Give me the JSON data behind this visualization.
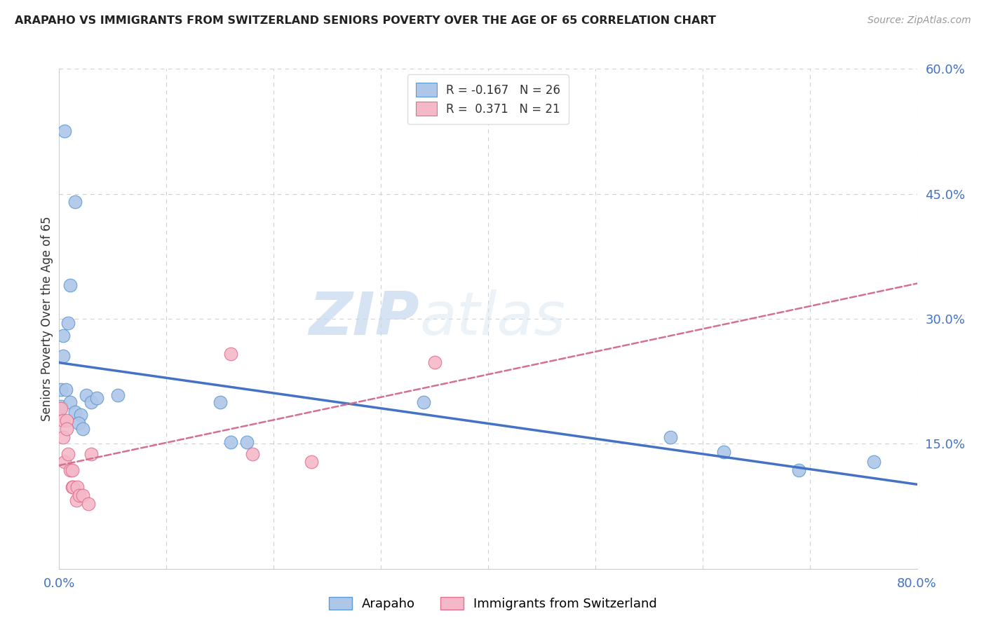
{
  "title": "ARAPAHO VS IMMIGRANTS FROM SWITZERLAND SENIORS POVERTY OVER THE AGE OF 65 CORRELATION CHART",
  "source": "Source: ZipAtlas.com",
  "ylabel": "Seniors Poverty Over the Age of 65",
  "xlim": [
    0,
    0.8
  ],
  "ylim": [
    0,
    0.6
  ],
  "xticks": [
    0.0,
    0.1,
    0.2,
    0.3,
    0.4,
    0.5,
    0.6,
    0.7,
    0.8
  ],
  "yticks": [
    0.0,
    0.15,
    0.3,
    0.45,
    0.6
  ],
  "background_color": "#ffffff",
  "grid_color": "#d0d0d0",
  "watermark_zip": "ZIP",
  "watermark_atlas": "atlas",
  "arapaho_color": "#aec6e8",
  "swiss_color": "#f4b8c8",
  "arapaho_edge_color": "#5b9bd5",
  "swiss_edge_color": "#e07090",
  "arapaho_line_color": "#4472c4",
  "swiss_line_color": "#d47090",
  "legend_label1": "R = -0.167   N = 26",
  "legend_label2": "R =  0.371   N = 21",
  "bottom_label1": "Arapaho",
  "bottom_label2": "Immigrants from Switzerland",
  "arapaho_points_x": [
    0.005,
    0.015,
    0.01,
    0.008,
    0.004,
    0.004,
    0.002,
    0.002,
    0.006,
    0.01,
    0.015,
    0.02,
    0.018,
    0.022,
    0.025,
    0.03,
    0.035,
    0.055,
    0.15,
    0.16,
    0.175,
    0.34,
    0.57,
    0.62,
    0.69,
    0.76
  ],
  "arapaho_points_y": [
    0.525,
    0.44,
    0.34,
    0.295,
    0.28,
    0.255,
    0.215,
    0.195,
    0.215,
    0.2,
    0.188,
    0.185,
    0.175,
    0.168,
    0.208,
    0.2,
    0.205,
    0.208,
    0.2,
    0.152,
    0.152,
    0.2,
    0.158,
    0.14,
    0.118,
    0.128
  ],
  "swiss_points_x": [
    0.002,
    0.004,
    0.004,
    0.005,
    0.007,
    0.007,
    0.008,
    0.01,
    0.012,
    0.012,
    0.013,
    0.016,
    0.017,
    0.019,
    0.022,
    0.027,
    0.03,
    0.16,
    0.18,
    0.235,
    0.35
  ],
  "swiss_points_y": [
    0.192,
    0.178,
    0.158,
    0.128,
    0.178,
    0.168,
    0.138,
    0.118,
    0.098,
    0.118,
    0.098,
    0.082,
    0.098,
    0.088,
    0.088,
    0.078,
    0.138,
    0.258,
    0.138,
    0.128,
    0.248
  ]
}
